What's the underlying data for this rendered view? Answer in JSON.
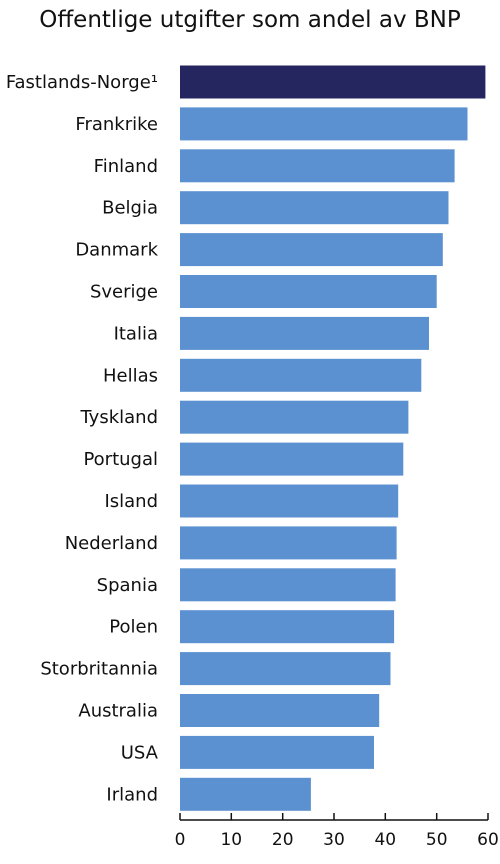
{
  "chart_data": {
    "type": "bar",
    "orientation": "horizontal",
    "title": "Offentlige utgifter som andel av BNP",
    "xlabel": "",
    "ylabel": "",
    "xlim": [
      0,
      60
    ],
    "xticks": [
      "0",
      "10",
      "20",
      "30",
      "40",
      "50",
      "60"
    ],
    "grid": false,
    "categories": [
      "Fastlands-Norge¹",
      "Frankrike",
      "Finland",
      "Belgia",
      "Danmark",
      "Sverige",
      "Italia",
      "Hellas",
      "Tyskland",
      "Portugal",
      "Island",
      "Nederland",
      "Spania",
      "Polen",
      "Storbritannia",
      "Australia",
      "USA",
      "Irland"
    ],
    "values": [
      59.5,
      56,
      53.5,
      52.3,
      51.2,
      50,
      48.5,
      47,
      44.5,
      43.5,
      42.5,
      42.2,
      42,
      41.7,
      41,
      38.8,
      37.8,
      25.5
    ],
    "highlight_index": 0,
    "colors": {
      "highlight": "#25255f",
      "bar": "#5b91d0",
      "axis": "#111111"
    }
  }
}
